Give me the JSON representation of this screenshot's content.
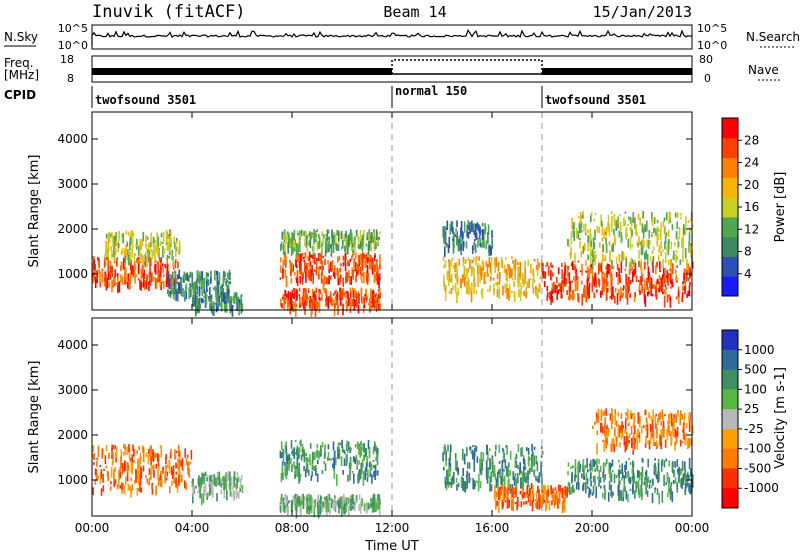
{
  "header": {
    "station": "Inuvik (fitACF)",
    "beam": "Beam 14",
    "date": "15/Jan/2013"
  },
  "strip_labels": {
    "nsky": "N.Sky",
    "nsky_ticks": [
      "10^5",
      "10^0"
    ],
    "nsearch": "N.Search",
    "nsearch_ticks": [
      "10^5",
      "10^0"
    ],
    "freq_line1": "Freq.",
    "freq_line2": "[MHz]",
    "freq_ticks": [
      "18",
      "8"
    ],
    "nave": "Nave",
    "nave_ticks": [
      "80",
      "0"
    ],
    "cpid": "CPID"
  },
  "cpid_segments": [
    {
      "label": "twofsound 3501",
      "start_hour": 0
    },
    {
      "label": "normal 150",
      "start_hour": 12
    },
    {
      "label": "twofsound 3501",
      "start_hour": 18
    }
  ],
  "colors": {
    "power_scale": [
      "#1a1aff",
      "#2a50b8",
      "#3d8a60",
      "#4fa84f",
      "#c8d020",
      "#f5b400",
      "#ff8000",
      "#ff4000",
      "#ff0000"
    ],
    "velocity_scale": [
      "#2030c0",
      "#2e6a9a",
      "#3f8f60",
      "#55b840",
      "#b8b8b8",
      "#ffa000",
      "#ff7a00",
      "#ff3000",
      "#ff0000"
    ]
  },
  "chart_data": [
    {
      "type": "heatmap",
      "quantity": "Power",
      "ylabel": "Slant Range [km]",
      "ylim": [
        200,
        4600
      ],
      "yticks": [
        1000,
        2000,
        3000,
        4000
      ],
      "xlim": [
        0,
        24
      ],
      "colorbar_label": "Power [dB]",
      "colorbar_ticks": [
        "4",
        "8",
        "12",
        "16",
        "20",
        "24",
        "28"
      ],
      "colorbar_range": [
        0,
        32
      ],
      "blobs": [
        {
          "x": [
            0,
            3.5
          ],
          "y": [
            800,
            1400
          ],
          "value": 26
        },
        {
          "x": [
            0.5,
            3.5
          ],
          "y": [
            1400,
            2000
          ],
          "value": 14
        },
        {
          "x": [
            3,
            5.5
          ],
          "y": [
            600,
            1100
          ],
          "value": 6
        },
        {
          "x": [
            4,
            6
          ],
          "y": [
            300,
            600
          ],
          "value": 6
        },
        {
          "x": [
            7.5,
            11.5
          ],
          "y": [
            900,
            1500
          ],
          "value": 26
        },
        {
          "x": [
            7.5,
            11.5
          ],
          "y": [
            1600,
            2000
          ],
          "value": 12
        },
        {
          "x": [
            7.5,
            11.5
          ],
          "y": [
            300,
            700
          ],
          "value": 27
        },
        {
          "x": [
            14,
            18
          ],
          "y": [
            600,
            1400
          ],
          "value": 18
        },
        {
          "x": [
            14,
            16
          ],
          "y": [
            1600,
            2200
          ],
          "value": 6
        },
        {
          "x": [
            18,
            24
          ],
          "y": [
            500,
            1300
          ],
          "value": 28
        },
        {
          "x": [
            19,
            24
          ],
          "y": [
            1300,
            2400
          ],
          "value": 14
        }
      ]
    },
    {
      "type": "heatmap",
      "quantity": "Velocity",
      "ylabel": "Slant Range [km]",
      "xlabel": "Time UT",
      "ylim": [
        200,
        4600
      ],
      "yticks": [
        1000,
        2000,
        3000,
        4000
      ],
      "xlim": [
        0,
        24
      ],
      "xticks": [
        "00:00",
        "04:00",
        "08:00",
        "12:00",
        "16:00",
        "20:00",
        "00:00"
      ],
      "colorbar_label": "Velocity [m s-1]",
      "colorbar_ticks": [
        "1000",
        "500",
        "100",
        "25",
        "-25",
        "-100",
        "-500",
        "-1000"
      ],
      "blobs": [
        {
          "x": [
            0,
            4
          ],
          "y": [
            800,
            1800
          ],
          "value": -400
        },
        {
          "x": [
            4,
            6
          ],
          "y": [
            700,
            1200
          ],
          "value": 50
        },
        {
          "x": [
            7.5,
            11.5
          ],
          "y": [
            1100,
            1900
          ],
          "value": 150
        },
        {
          "x": [
            7.5,
            11.5
          ],
          "y": [
            400,
            700
          ],
          "value": 80
        },
        {
          "x": [
            14,
            18
          ],
          "y": [
            900,
            1800
          ],
          "value": 300
        },
        {
          "x": [
            16,
            19
          ],
          "y": [
            500,
            900
          ],
          "value": -400
        },
        {
          "x": [
            19,
            24
          ],
          "y": [
            700,
            1500
          ],
          "value": 100
        },
        {
          "x": [
            20,
            24
          ],
          "y": [
            1800,
            2600
          ],
          "value": -200
        }
      ]
    }
  ]
}
